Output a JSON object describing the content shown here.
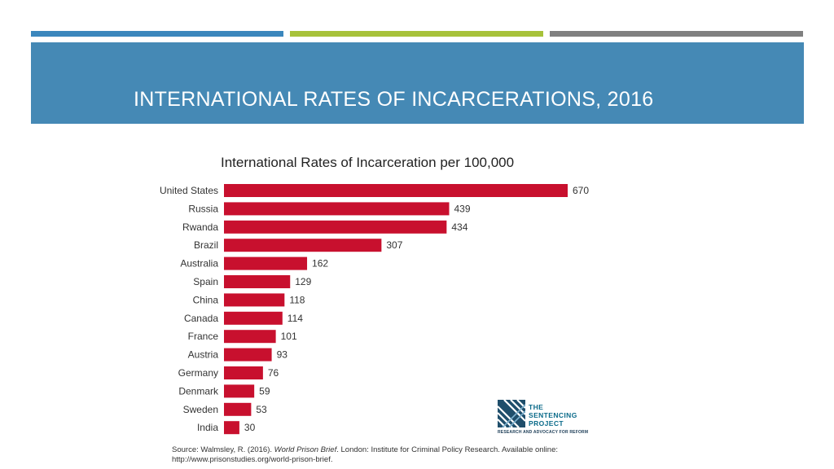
{
  "slide": {
    "title": "INTERNATIONAL RATES OF INCARCERATIONS, 2016"
  },
  "colors": {
    "bar": "#c8102e",
    "title_band": "#4589b5",
    "accent_blue": "#3b87bd",
    "accent_green": "#a7c23a",
    "accent_gray": "#808080"
  },
  "chart_data": {
    "type": "bar",
    "orientation": "horizontal",
    "title": "International Rates of Incarceration per 100,000",
    "xlabel": "",
    "ylabel": "",
    "grid": false,
    "legend": "none",
    "xlim": [
      0,
      670
    ],
    "categories": [
      "United States",
      "Russia",
      "Rwanda",
      "Brazil",
      "Australia",
      "Spain",
      "China",
      "Canada",
      "France",
      "Austria",
      "Germany",
      "Denmark",
      "Sweden",
      "India"
    ],
    "values": [
      670,
      439,
      434,
      307,
      162,
      129,
      118,
      114,
      101,
      93,
      76,
      59,
      53,
      30
    ]
  },
  "logo": {
    "line1": "THE",
    "line2": "SENTENCING",
    "line3": "PROJECT",
    "tagline": "RESEARCH AND ADVOCACY FOR REFORM"
  },
  "source": {
    "prefix": "Source: Walmsley, R. (2016). ",
    "work": "World Prison Brief",
    "suffix": ". London: Institute for Criminal Policy Research. Available online:",
    "url": "http://www.prisonstudies.org/world-prison-brief."
  }
}
